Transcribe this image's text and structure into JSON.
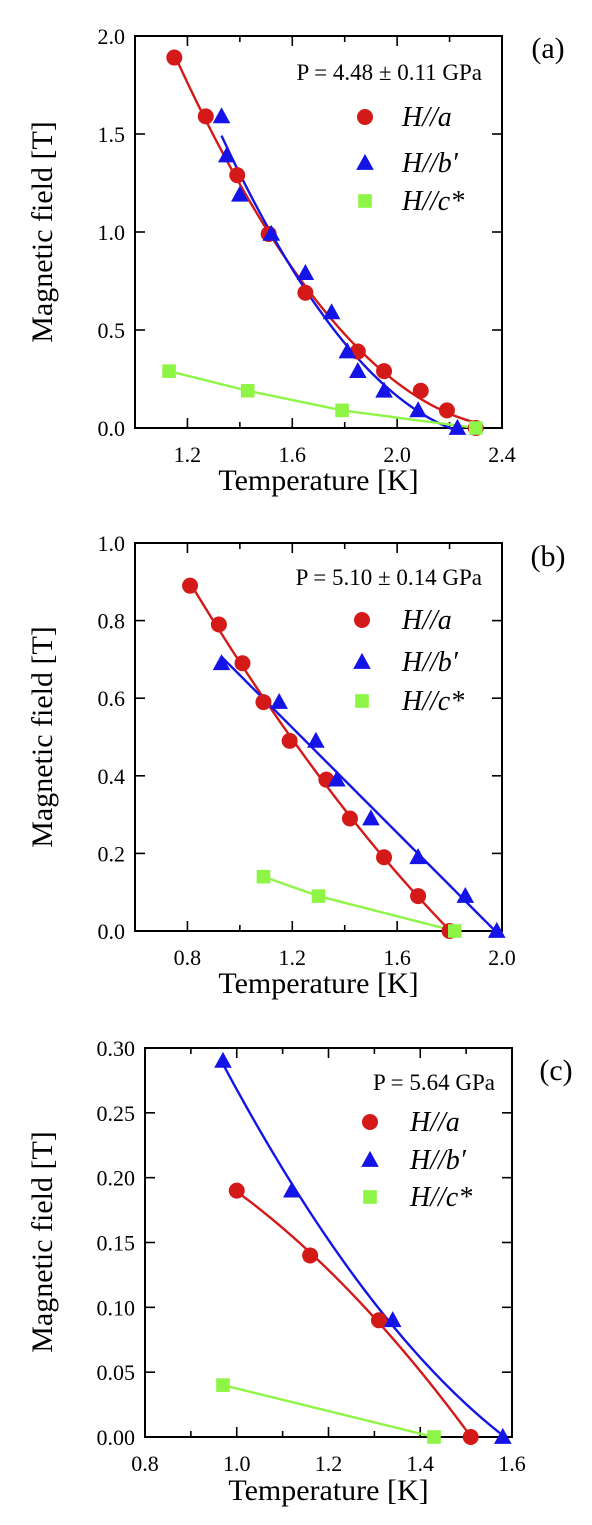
{
  "colors": {
    "a": "#d41919",
    "b": "#1414e6",
    "c": "#8ef546",
    "axis": "#000000"
  },
  "chart_data": [
    {
      "type": "scatter",
      "panel_label": "(a)",
      "pressure_label": "P = 4.48 ± 0.11 GPa",
      "xlabel": "Temperature [K]",
      "ylabel": "Magnetic field [T]",
      "xlim": [
        1.0,
        2.4
      ],
      "ylim": [
        0.0,
        2.0
      ],
      "x_ticks": [
        1.2,
        1.6,
        2.0,
        2.4
      ],
      "x_tick_labels": [
        "1.2",
        "1.6",
        "2.0",
        "2.4"
      ],
      "y_ticks": [
        0.0,
        0.5,
        1.0,
        1.5,
        2.0
      ],
      "y_tick_labels": [
        "0.0",
        "0.5",
        "1.0",
        "1.5",
        "2.0"
      ],
      "legend_position": "right",
      "series": [
        {
          "name": "H//a",
          "marker": "circle",
          "color_key": "a",
          "x": [
            1.15,
            1.27,
            1.39,
            1.51,
            1.65,
            1.85,
            1.95,
            2.09,
            2.19,
            2.3
          ],
          "y": [
            1.89,
            1.59,
            1.29,
            0.99,
            0.69,
            0.39,
            0.29,
            0.19,
            0.09,
            0.0
          ]
        },
        {
          "name": "H//b′",
          "marker": "triangle",
          "color_key": "b",
          "x": [
            1.33,
            1.35,
            1.4,
            1.52,
            1.65,
            1.75,
            1.81,
            1.85,
            1.95,
            2.08,
            2.23
          ],
          "y": [
            1.59,
            1.39,
            1.19,
            0.99,
            0.79,
            0.59,
            0.39,
            0.29,
            0.19,
            0.09,
            0.0
          ]
        },
        {
          "name": "H//c*",
          "marker": "square",
          "color_key": "c",
          "x": [
            1.13,
            1.43,
            1.79,
            2.3
          ],
          "y": [
            0.29,
            0.19,
            0.09,
            0.0
          ]
        }
      ]
    },
    {
      "type": "scatter",
      "panel_label": "(b)",
      "pressure_label": "P = 5.10 ± 0.14 GPa",
      "xlabel": "Temperature [K]",
      "ylabel": "Magnetic field [T]",
      "xlim": [
        0.6,
        2.0
      ],
      "ylim": [
        0.0,
        1.0
      ],
      "x_ticks": [
        0.8,
        1.2,
        1.6,
        2.0
      ],
      "x_tick_labels": [
        "0.8",
        "1.2",
        "1.6",
        "2.0"
      ],
      "y_ticks": [
        0.0,
        0.2,
        0.4,
        0.6,
        0.8,
        1.0
      ],
      "y_tick_labels": [
        "0.0",
        "0.2",
        "0.4",
        "0.6",
        "0.8",
        "1.0"
      ],
      "legend_position": "right",
      "series": [
        {
          "name": "H//a",
          "marker": "circle",
          "color_key": "a",
          "x": [
            0.81,
            0.92,
            1.01,
            1.09,
            1.19,
            1.33,
            1.42,
            1.55,
            1.68,
            1.8
          ],
          "y": [
            0.89,
            0.79,
            0.69,
            0.59,
            0.49,
            0.39,
            0.29,
            0.19,
            0.09,
            0.0
          ]
        },
        {
          "name": "H//b′",
          "marker": "triangle",
          "color_key": "b",
          "x": [
            0.93,
            1.15,
            1.29,
            1.37,
            1.5,
            1.68,
            1.86,
            1.98
          ],
          "y": [
            0.69,
            0.59,
            0.49,
            0.39,
            0.29,
            0.19,
            0.09,
            0.0
          ]
        },
        {
          "name": "H//c*",
          "marker": "square",
          "color_key": "c",
          "x": [
            1.09,
            1.3,
            1.82
          ],
          "y": [
            0.14,
            0.09,
            0.0
          ]
        }
      ]
    },
    {
      "type": "scatter",
      "panel_label": "(c)",
      "pressure_label": "P = 5.64 GPa",
      "xlabel": "Temperature [K]",
      "ylabel": "Magnetic field [T]",
      "xlim": [
        0.8,
        1.6
      ],
      "ylim": [
        0.0,
        0.3
      ],
      "x_ticks": [
        0.8,
        1.0,
        1.2,
        1.4,
        1.6
      ],
      "x_tick_labels": [
        "0.8",
        "1.0",
        "1.2",
        "1.4",
        "1.6"
      ],
      "y_ticks": [
        0.0,
        0.05,
        0.1,
        0.15,
        0.2,
        0.25,
        0.3
      ],
      "y_tick_labels": [
        "0.00",
        "0.05",
        "0.10",
        "0.15",
        "0.20",
        "0.25",
        "0.30"
      ],
      "legend_position": "right",
      "series": [
        {
          "name": "H//a",
          "marker": "circle",
          "color_key": "a",
          "x": [
            1.0,
            1.16,
            1.31,
            1.51
          ],
          "y": [
            0.19,
            0.14,
            0.09,
            0.0
          ]
        },
        {
          "name": "H//b′",
          "marker": "triangle",
          "color_key": "b",
          "x": [
            0.97,
            1.12,
            1.34,
            1.58
          ],
          "y": [
            0.29,
            0.19,
            0.09,
            0.0
          ]
        },
        {
          "name": "H//c*",
          "marker": "square",
          "color_key": "c",
          "x": [
            0.97,
            1.43
          ],
          "y": [
            0.04,
            0.0
          ]
        }
      ]
    }
  ]
}
